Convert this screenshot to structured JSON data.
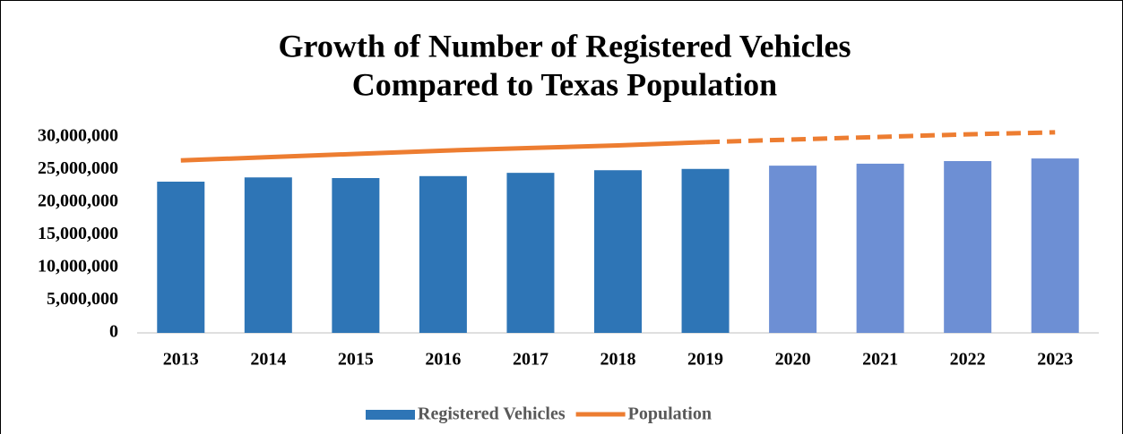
{
  "chart_data": {
    "type": "bar_line",
    "title": [
      "Growth of Number of Registered Vehicles",
      "Compared to Texas Population"
    ],
    "categories": [
      "2013",
      "2014",
      "2015",
      "2016",
      "2017",
      "2018",
      "2019",
      "2020",
      "2021",
      "2022",
      "2023"
    ],
    "projected_from": "2020",
    "series": [
      {
        "name": "Registered Vehicles",
        "type": "bar",
        "color": "#2e75b6",
        "projected_color": "#6d8fd4",
        "values": [
          23150000,
          23800000,
          23700000,
          24000000,
          24500000,
          24900000,
          25100000,
          25600000,
          25900000,
          26300000,
          26700000
        ]
      },
      {
        "name": "Population",
        "type": "line",
        "color": "#ed7d31",
        "values": [
          26400000,
          26900000,
          27400000,
          27900000,
          28300000,
          28700000,
          29200000,
          29600000,
          30000000,
          30400000,
          30700000
        ]
      }
    ],
    "ylim": [
      0,
      30000000
    ],
    "yticks": [
      0,
      {
        "value": 5000000,
        "label": "5,000,000"
      },
      {
        "value": 10000000,
        "label": "10,000,000"
      },
      {
        "value": 15000000,
        "label": "15,000,000"
      },
      {
        "value": 20000000,
        "label": "20,000,000"
      },
      {
        "value": 25000000,
        "label": "25,000,000"
      },
      {
        "value": 30000000,
        "label": "30,000,000"
      }
    ],
    "grid": false,
    "legend": "bottom"
  }
}
